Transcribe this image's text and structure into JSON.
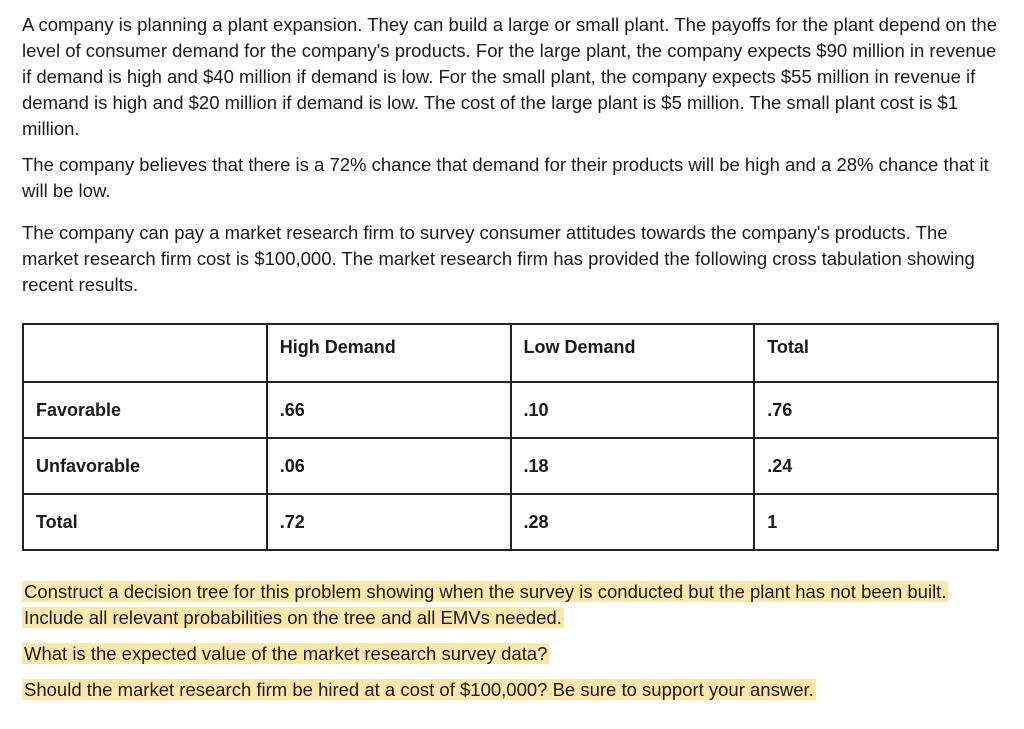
{
  "paragraphs": [
    "A company is planning a plant expansion. They can build a large or small plant. The payoffs for the plant depend on the level of consumer demand for the company's products. For the large plant, the company expects $90 million in revenue if demand is high and $40 million if demand is low. For the small plant, the company expects $55 million in revenue if demand is high and $20 million if demand is low. The cost of the large plant is $5 million. The small plant cost is $1 million.",
    "The company believes that there is a 72% chance that demand for their products will be high and a 28% chance that it will be low.",
    "The company can pay a market research firm to survey consumer attitudes towards the company's products. The market research firm cost is $100,000. The market research firm has provided the following cross tabulation showing recent results."
  ],
  "table": {
    "header": [
      "High Demand",
      "Low Demand",
      "Total"
    ],
    "rows": [
      [
        "Favorable",
        ".66",
        ".10",
        ".76"
      ],
      [
        "Unfavorable",
        ".06",
        ".18",
        ".24"
      ],
      [
        "Total",
        ".72",
        ".28",
        "1"
      ]
    ]
  },
  "questions": [
    "Construct a decision tree for this problem showing when the survey is conducted but the plant has not been built. Include all relevant probabilities on the tree and all EMVs needed.",
    "What is the expected value of the market research survey data?",
    "Should the market research firm be hired at a cost of $100,000? Be sure to support your answer."
  ]
}
